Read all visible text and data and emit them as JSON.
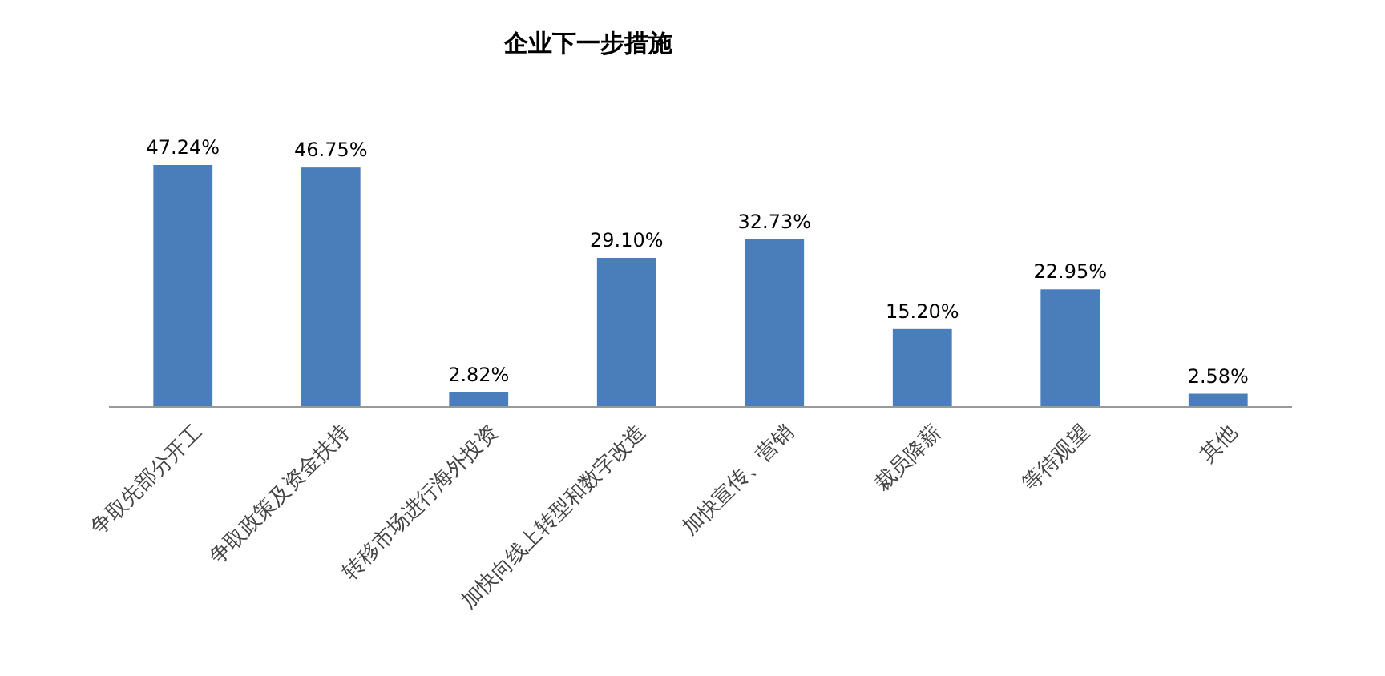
{
  "chart_data": {
    "type": "bar",
    "title": "企业下一步措施",
    "categories": [
      "争取先部分开工",
      "争取政策及资金扶持",
      "转移市场进行海外投资",
      "加快向线上转型和数字改造",
      "加快宣传、营销",
      "裁员降薪",
      "等待观望",
      "其他"
    ],
    "values": [
      47.24,
      46.75,
      2.82,
      29.1,
      32.73,
      15.2,
      22.95,
      2.58
    ],
    "value_labels": [
      "47.24%",
      "46.75%",
      "2.82%",
      "29.10%",
      "32.73%",
      "15.20%",
      "22.95%",
      "2.58%"
    ],
    "color": "#4a7ebb"
  }
}
